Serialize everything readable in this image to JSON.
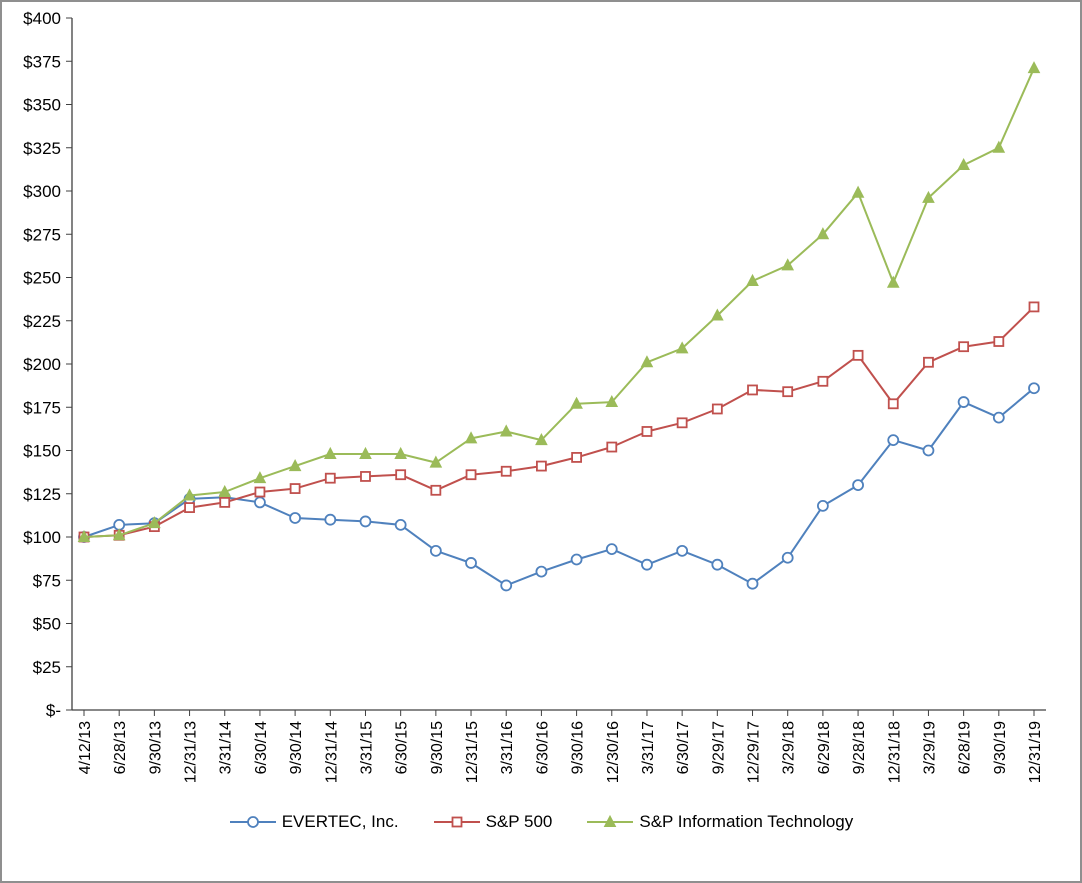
{
  "chart_data": {
    "type": "line",
    "title": "",
    "xlabel": "",
    "ylabel": "",
    "ylim": [
      0,
      400
    ],
    "ytick_step": 25,
    "ytick_labels": [
      "$-",
      "$25",
      "$50",
      "$75",
      "$100",
      "$125",
      "$150",
      "$175",
      "$200",
      "$225",
      "$250",
      "$275",
      "$300",
      "$325",
      "$350",
      "$375",
      "$400"
    ],
    "grid": false,
    "legend_position": "bottom",
    "x": [
      "4/12/13",
      "6/28/13",
      "9/30/13",
      "12/31/13",
      "3/31/14",
      "6/30/14",
      "9/30/14",
      "12/31/14",
      "3/31/15",
      "6/30/15",
      "9/30/15",
      "12/31/15",
      "3/31/16",
      "6/30/16",
      "9/30/16",
      "12/30/16",
      "3/31/17",
      "6/30/17",
      "9/29/17",
      "12/29/17",
      "3/29/18",
      "6/29/18",
      "9/28/18",
      "12/31/18",
      "3/29/19",
      "6/28/19",
      "9/30/19",
      "12/31/19"
    ],
    "series": [
      {
        "name": "EVERTEC, Inc.",
        "marker": "circle",
        "color": "#4F81BD",
        "values": [
          100,
          107,
          108,
          122,
          123,
          120,
          111,
          110,
          109,
          107,
          92,
          85,
          72,
          80,
          87,
          93,
          84,
          92,
          84,
          73,
          88,
          118,
          130,
          156,
          150,
          178,
          169,
          186
        ]
      },
      {
        "name": "S&P 500",
        "marker": "square",
        "color": "#C0504D",
        "values": [
          100,
          101,
          106,
          117,
          120,
          126,
          128,
          134,
          135,
          136,
          127,
          136,
          138,
          141,
          146,
          152,
          161,
          166,
          174,
          185,
          184,
          190,
          205,
          177,
          201,
          210,
          213,
          233
        ]
      },
      {
        "name": "S&P Information Technology",
        "marker": "triangle",
        "color": "#9BBB59",
        "values": [
          100,
          101,
          108,
          124,
          126,
          134,
          141,
          148,
          148,
          148,
          143,
          157,
          161,
          156,
          177,
          178,
          201,
          209,
          228,
          248,
          257,
          275,
          299,
          247,
          296,
          315,
          325,
          371
        ]
      }
    ],
    "axis_color": "#404040",
    "text_color": "#000000"
  }
}
